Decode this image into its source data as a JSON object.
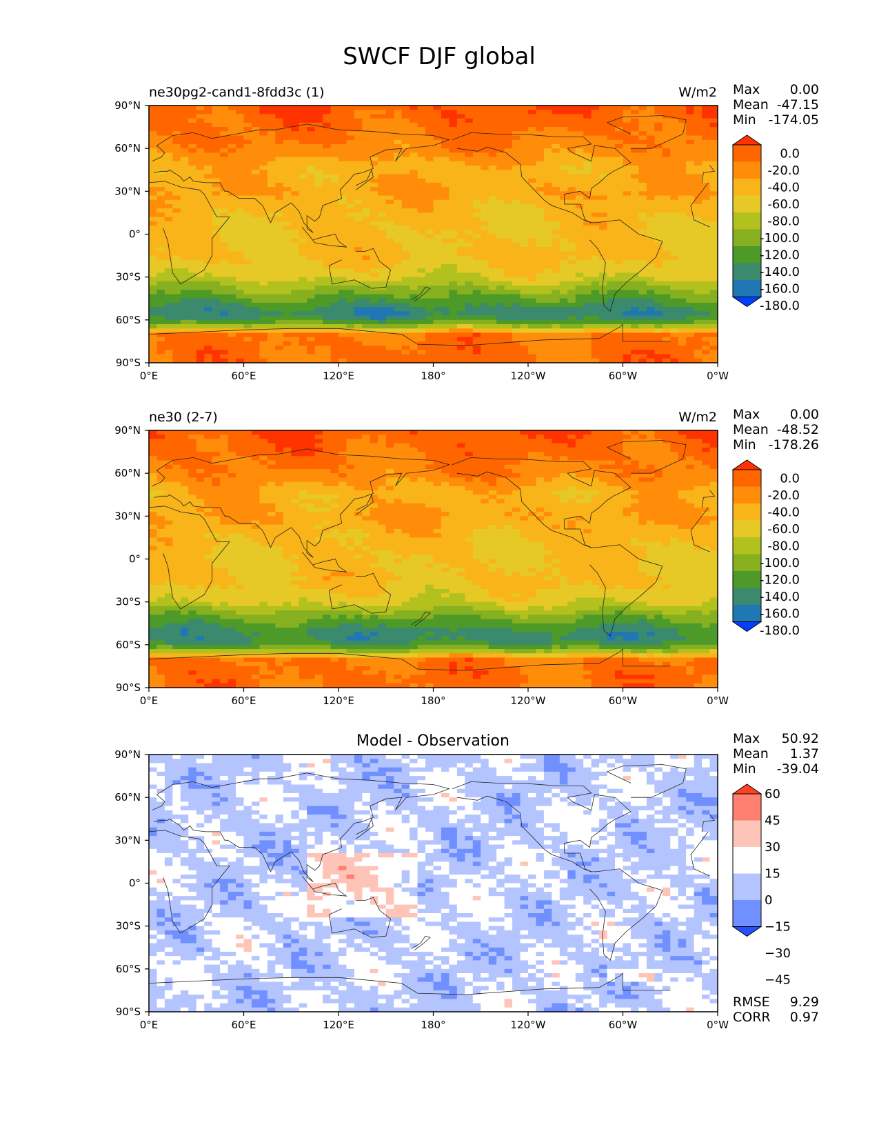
{
  "figure": {
    "title": "SWCF DJF global",
    "units": "W/m2"
  },
  "axes": {
    "x_ticks": [
      "0°E",
      "60°E",
      "120°E",
      "180°",
      "120°W",
      "60°W",
      "0°W"
    ],
    "y_ticks": [
      "90°N",
      "60°N",
      "30°N",
      "0°",
      "30°S",
      "60°S",
      "90°S"
    ]
  },
  "stat_labels": {
    "max": "Max",
    "mean": "Mean",
    "min": "Min",
    "rmse": "RMSE",
    "corr": "CORR"
  },
  "colorscales": {
    "field": {
      "levels": [
        "0.0",
        "-20.0",
        "-40.0",
        "-60.0",
        "-80.0",
        "-100.0",
        "-120.0",
        "-140.0",
        "-160.0",
        "-180.0"
      ],
      "colors": [
        "#ff3300",
        "#ff6600",
        "#ff8d0a",
        "#f9b41a",
        "#e6c826",
        "#b2c11d",
        "#86b020",
        "#4e9a28",
        "#3b8a6e",
        "#1f77b4",
        "#0040ff"
      ]
    },
    "diff": {
      "levels": [
        "60",
        "45",
        "30",
        "15",
        "0",
        "−15",
        "−30",
        "−45"
      ],
      "colors": [
        "#ff4422",
        "#ff8070",
        "#ffc4b8",
        "#ffffff",
        "#b4c4ff",
        "#7090ff",
        "#2650ff"
      ]
    }
  },
  "chart_data": [
    {
      "type": "heatmap",
      "title": "ne30pg2-cand1-8fdd3c (1)",
      "units": "W/m2",
      "xlim": [
        0,
        360
      ],
      "ylim": [
        -90,
        90
      ],
      "stats": {
        "max": "0.00",
        "mean": "-47.15",
        "min": "-174.05"
      },
      "lat_profile_wm2": {
        "lat": [
          90,
          75,
          60,
          45,
          30,
          15,
          0,
          -15,
          -30,
          -40,
          -50,
          -55,
          -60,
          -65,
          -70,
          -80,
          -90
        ],
        "value": [
          -5,
          -15,
          -25,
          -50,
          -40,
          -55,
          -60,
          -55,
          -75,
          -110,
          -140,
          -155,
          -140,
          -90,
          -20,
          -15,
          -15
        ]
      }
    },
    {
      "type": "heatmap",
      "title": "ne30 (2-7)",
      "units": "W/m2",
      "xlim": [
        0,
        360
      ],
      "ylim": [
        -90,
        90
      ],
      "stats": {
        "max": "0.00",
        "mean": "-48.52",
        "min": "-178.26"
      },
      "lat_profile_wm2": {
        "lat": [
          90,
          75,
          60,
          45,
          30,
          15,
          0,
          -15,
          -30,
          -40,
          -50,
          -55,
          -60,
          -65,
          -70,
          -80,
          -90
        ],
        "value": [
          -5,
          -15,
          -25,
          -50,
          -40,
          -55,
          -60,
          -55,
          -75,
          -115,
          -145,
          -150,
          -135,
          -90,
          -20,
          -15,
          -15
        ]
      }
    },
    {
      "type": "heatmap",
      "title": "Model - Observation",
      "xlim": [
        0,
        360
      ],
      "ylim": [
        -90,
        90
      ],
      "stats": {
        "max": "50.92",
        "mean": "1.37",
        "min": "-39.04",
        "rmse": "9.29",
        "corr": "0.97"
      }
    }
  ]
}
